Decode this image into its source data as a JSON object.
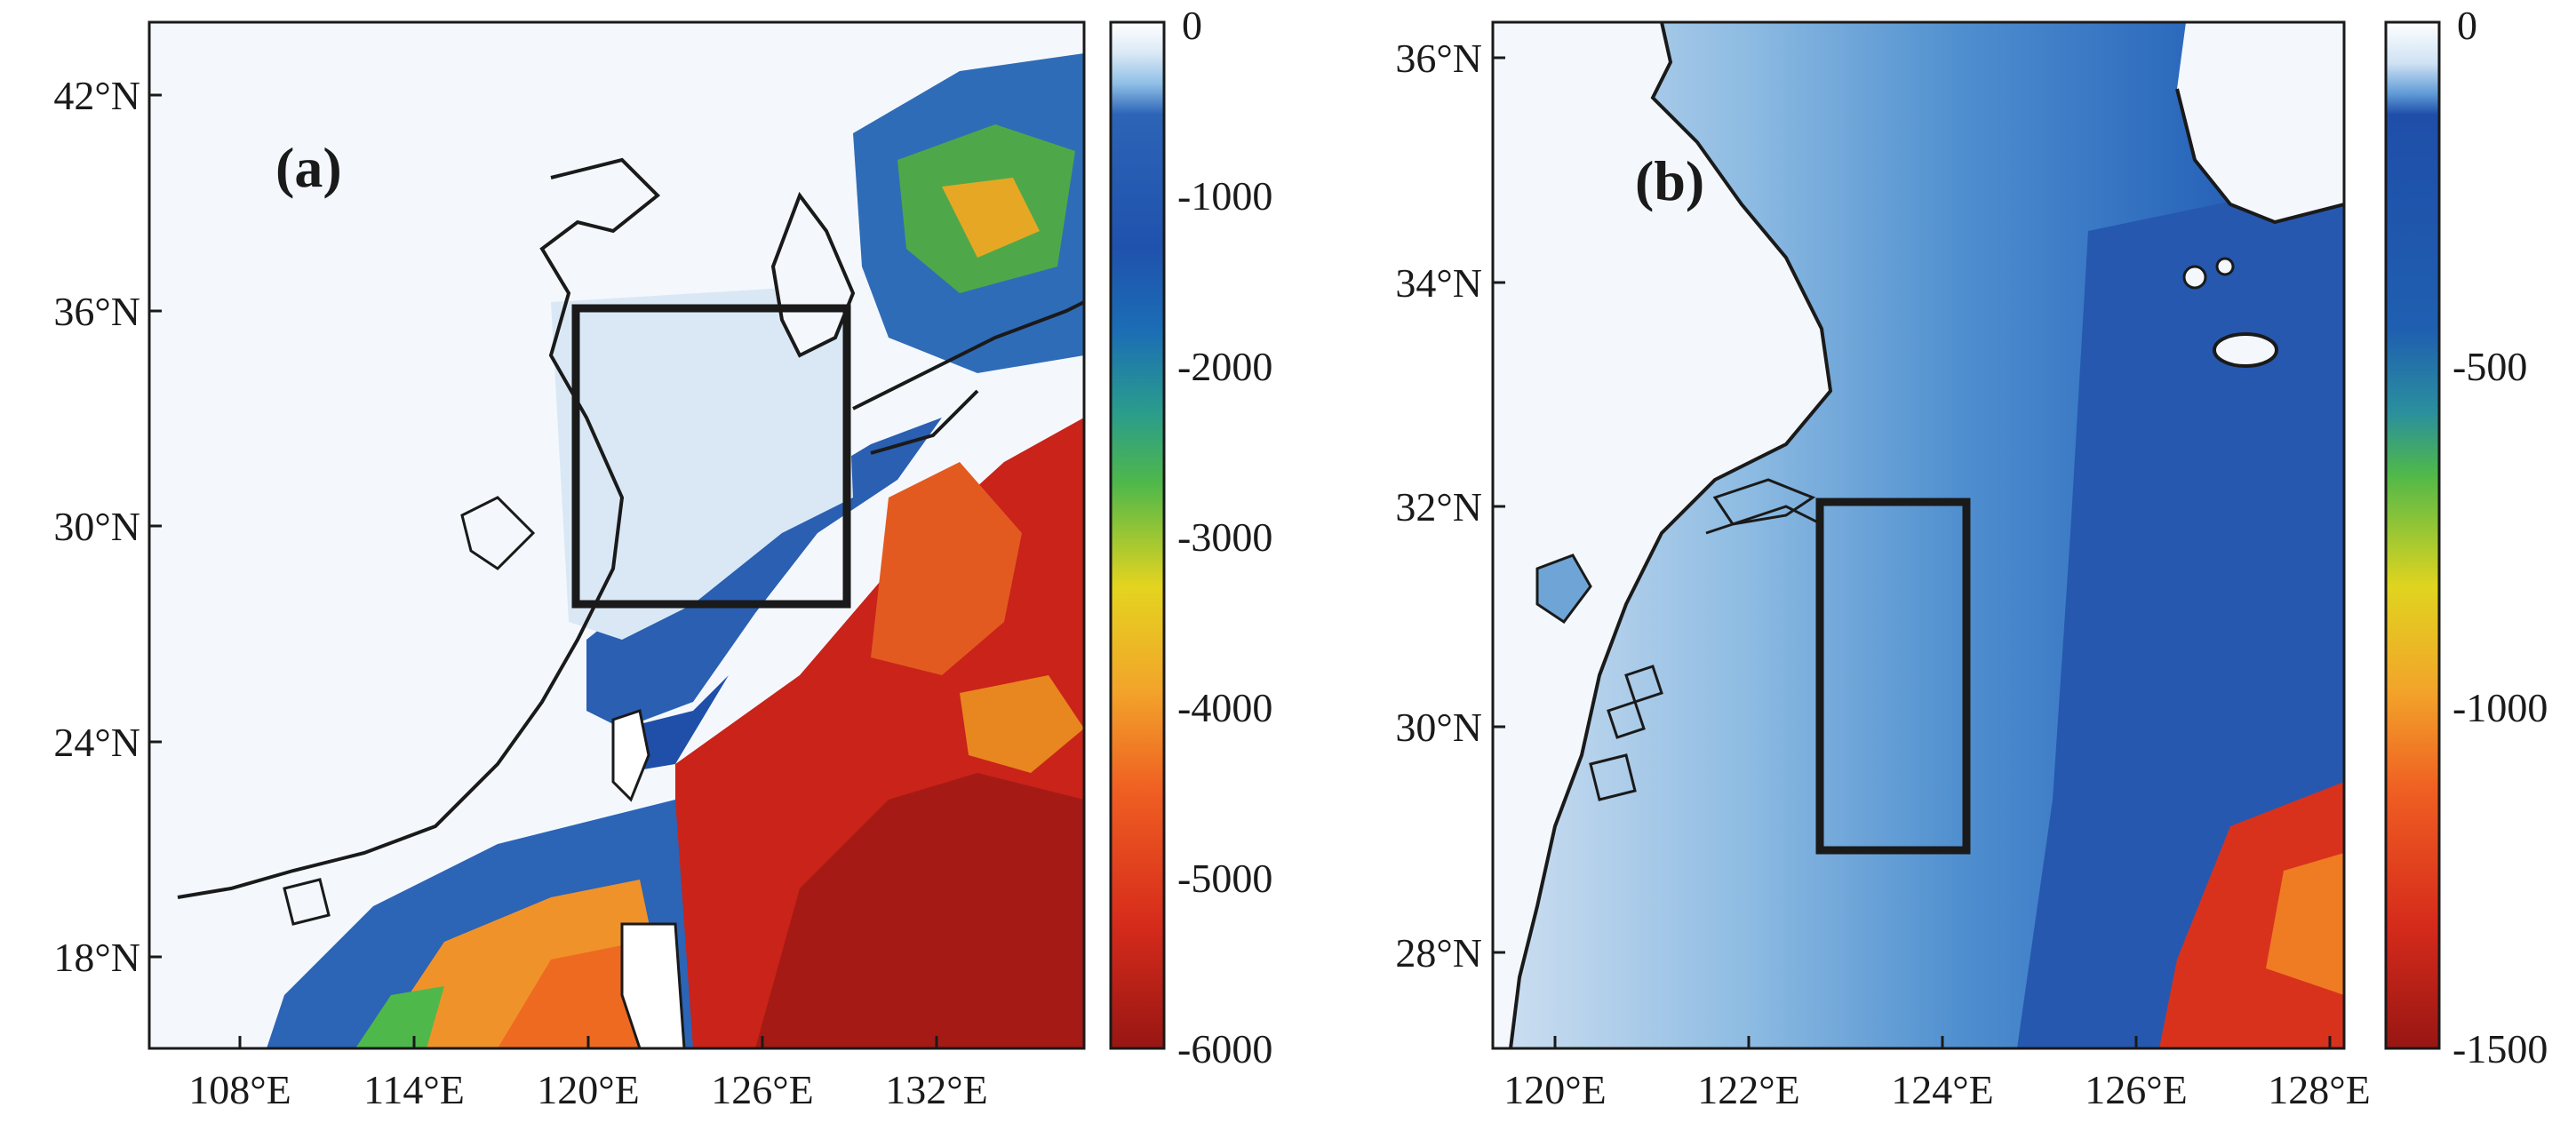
{
  "panels": [
    {
      "id": "a",
      "letter": "(a)",
      "lat_labels": [
        "42°N",
        "36°N",
        "30°N",
        "24°N",
        "18°N"
      ],
      "lon_labels": [
        "108°E",
        "114°E",
        "120°E",
        "126°E",
        "132°E"
      ],
      "colorbar": {
        "ticks": [
          "0",
          "-1000",
          "-2000",
          "-3000",
          "-4000",
          "-5000",
          "-6000"
        ],
        "min": -6000,
        "max": 0
      },
      "highlight_box": "study-region"
    },
    {
      "id": "b",
      "letter": "(b)",
      "lat_labels": [
        "36°N",
        "34°N",
        "32°N",
        "30°N",
        "28°N"
      ],
      "lon_labels": [
        "120°E",
        "122°E",
        "124°E",
        "126°E",
        "128°E"
      ],
      "colorbar": {
        "ticks": [
          "0",
          "-500",
          "-1000",
          "-1500"
        ],
        "min": -1500,
        "max": 0
      },
      "highlight_box": "study-region"
    }
  ],
  "colors": {
    "land": "#f4f8fc",
    "shelf": "#dde9f5",
    "shallow_blue": "#7fb1dc",
    "mid_blue": "#2f6eb8",
    "deep_blue": "#1d3f9c",
    "green": "#3faa4a",
    "yellow": "#e6d21e",
    "orange": "#f0892a",
    "red": "#d72a1c",
    "dark_red": "#9a1414",
    "outline": "#1a1a1a"
  }
}
